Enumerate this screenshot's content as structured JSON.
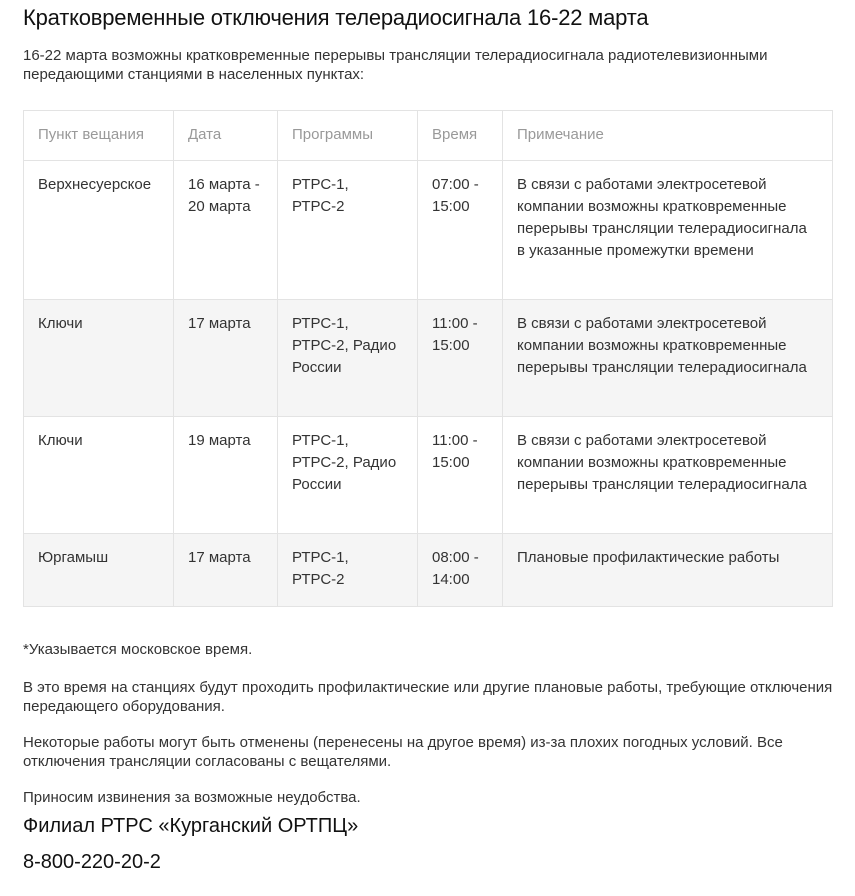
{
  "title": "Кратковременные отключения телерадиосигнала 16-22 марта",
  "intro": "16-22 марта возможны кратковременные перерывы трансляции телерадиосигнала радиотелевизионными передающими станциями в населенных пунктах:",
  "table": {
    "headers": [
      "Пункт вещания",
      "Дата",
      "Программы",
      "Время",
      "Примечание"
    ],
    "rows": [
      [
        "Верхнесуерское",
        "16 марта - 20 марта",
        "РТРС-1, РТРС-2",
        "07:00 - 15:00",
        "В связи с работами электросетевой компании возможны кратковременные перерывы трансляции телерадиосигнала в указанные промежутки времени"
      ],
      [
        "Ключи",
        "17 марта",
        "РТРС-1, РТРС-2, Радио России",
        "11:00 - 15:00",
        "В связи с работами электросетевой компании возможны кратковременные перерывы трансляции телерадиосигнала"
      ],
      [
        "Ключи",
        "19 марта",
        "РТРС-1, РТРС-2, Радио России",
        "11:00 - 15:00",
        "В связи с работами электросетевой компании возможны кратковременные перерывы трансляции телерадиосигнала"
      ],
      [
        "Юргамыш",
        "17 марта",
        "РТРС-1, РТРС-2",
        "08:00 - 14:00",
        "Плановые профилактические работы"
      ]
    ]
  },
  "notes": [
    "*Указывается московское время.",
    "В это время на станциях будут проходить профилактические или другие плановые работы, требующие отключения передающего оборудования.",
    "Некоторые работы могут быть отменены (перенесены на другое время) из-за плохих погодных условий. Все отключения трансляции согласованы с вещателями.",
    "Приносим извинения за возможные неудобства."
  ],
  "signature": "Филиал РТРС «Курганский ОРТПЦ»",
  "phone": "8-800-220-20-2"
}
